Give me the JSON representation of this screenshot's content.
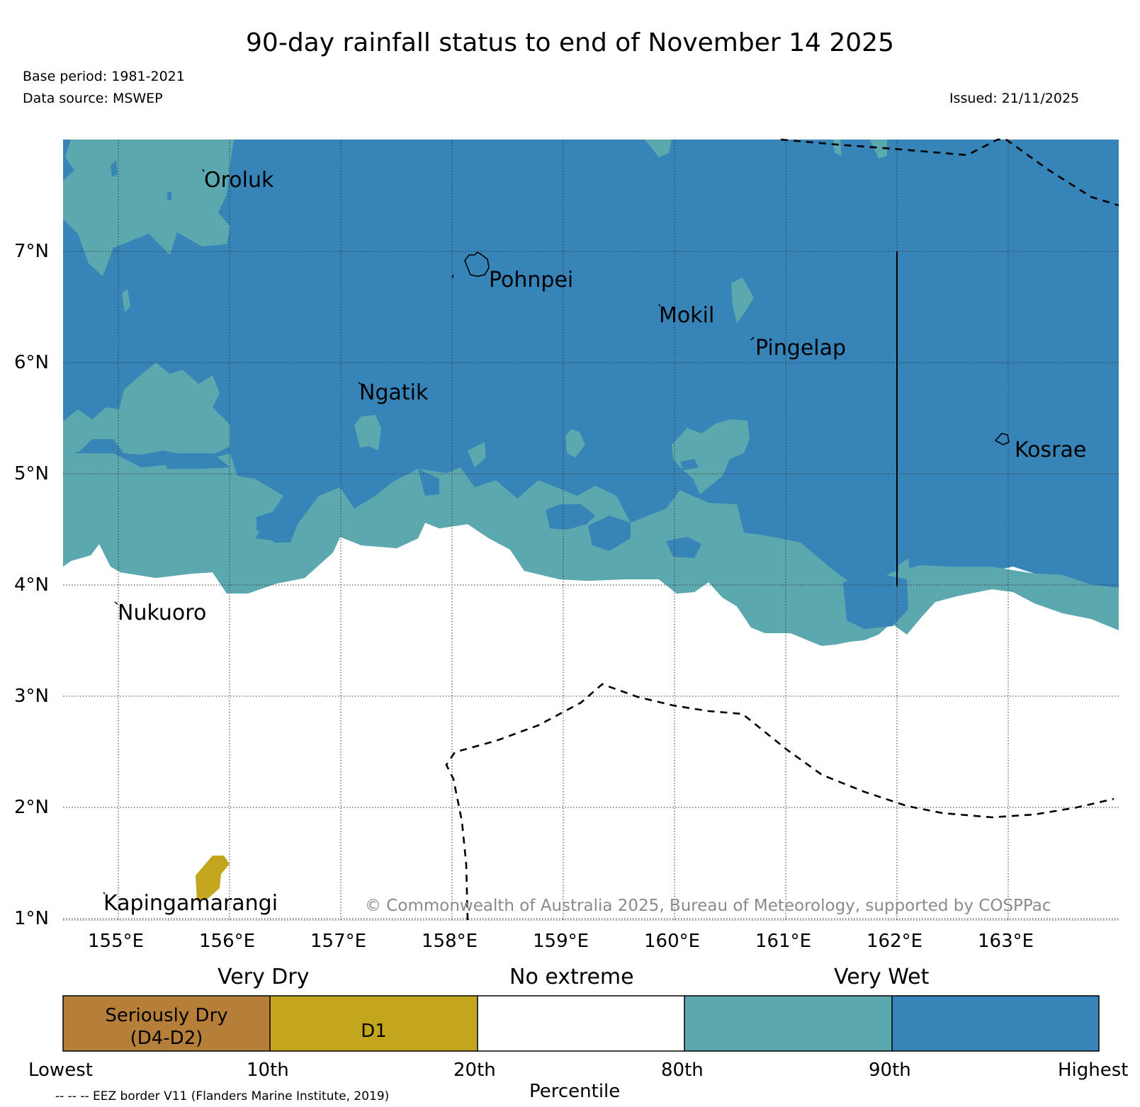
{
  "header": {
    "title": "90-day rainfall status to end of November 14 2025",
    "base_period": "Base period: 1981-2021",
    "data_source": "Data source: MSWEP",
    "issued": "Issued: 21/11/2025"
  },
  "map": {
    "lat_labels": [
      "7°N",
      "6°N",
      "5°N",
      "4°N",
      "3°N",
      "2°N",
      "1°N"
    ],
    "lon_labels": [
      "155°E",
      "156°E",
      "157°E",
      "158°E",
      "159°E",
      "160°E",
      "161°E",
      "162°E",
      "163°E"
    ],
    "places": {
      "oroluk": "Oroluk",
      "pohnpei": "Pohnpei",
      "mokil": "Mokil",
      "pingelap": "Pingelap",
      "ngatik": "Ngatik",
      "kosrae": "Kosrae",
      "nukuoro": "Nukuoro",
      "kapingamarangi": "Kapingamarangi"
    },
    "copyright": "© Commonwealth of Australia 2025, Bureau of Meteorology, supported by COSPPac",
    "colors": {
      "very_wet": "#3784b8",
      "wet": "#5ba8ae",
      "no_extreme": "#ffffff",
      "d1": "#c4a61e",
      "seriously_dry": "#b57e39"
    }
  },
  "legend": {
    "very_dry": "Very Dry",
    "no_extreme": "No extreme",
    "very_wet": "Very Wet",
    "seriously_dry_line1": "Seriously Dry",
    "seriously_dry_line2": "(D4-D2)",
    "d1": "D1",
    "percentiles": [
      "Lowest",
      "10th",
      "20th",
      "80th",
      "90th",
      "Highest"
    ],
    "axis_label": "Percentile",
    "eez_note": "-- -- -- EEZ border V11 (Flanders Marine Institute, 2019)"
  }
}
